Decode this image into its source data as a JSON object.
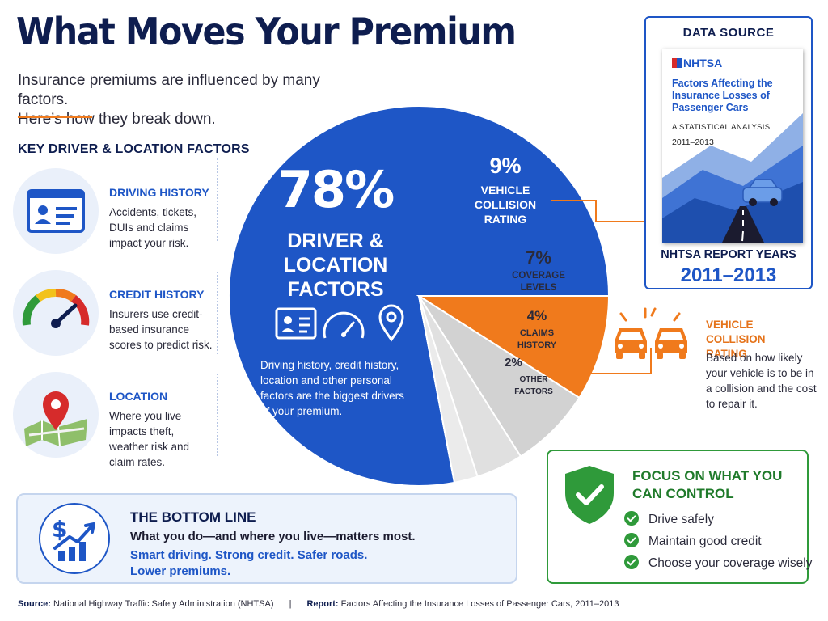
{
  "header": {
    "title": "What Moves Your Premium",
    "subtitle_line1": "Insurance premiums are influenced by many factors.",
    "subtitle_line2": "Here’s how they break down."
  },
  "key_factors": {
    "title": "KEY DRIVER & LOCATION FACTORS",
    "items": [
      {
        "name": "DRIVING HISTORY",
        "description": "Accidents, tickets, DUIs and claims impact your risk.",
        "icon": "id-card-icon"
      },
      {
        "name": "CREDIT HISTORY",
        "description": "Insurers use credit-based insurance scores to predict risk.",
        "icon": "gauge-icon"
      },
      {
        "name": "LOCATION",
        "description": "Where you live impacts theft, weather risk and claim rates.",
        "icon": "map-pin-icon"
      }
    ]
  },
  "pie": {
    "main_pct": "78%",
    "main_label_1": "DRIVER &",
    "main_label_2": "LOCATION",
    "main_label_3": "FACTORS",
    "main_desc_1": "Driving history, credit history,",
    "main_desc_2": "location and other personal",
    "main_desc_3": "factors are the biggest drivers",
    "main_desc_4": "of your premium.",
    "labels": [
      {
        "pct": "9%",
        "line1": "VEHICLE",
        "line2": "COLLISION",
        "line3": "RATING"
      },
      {
        "pct": "7%",
        "line1": "COVERAGE",
        "line2": "LEVELS"
      },
      {
        "pct": "4%",
        "line1": "CLAIMS",
        "line2": "HISTORY"
      },
      {
        "pct": "2%",
        "line1": "OTHER",
        "line2": "FACTORS"
      }
    ]
  },
  "chart_data": {
    "type": "pie",
    "title": "What Moves Your Premium",
    "categories": [
      "Driver & Location Factors",
      "Vehicle Collision Rating",
      "Coverage Levels",
      "Claims History",
      "Other Factors"
    ],
    "values": [
      78,
      9,
      7,
      4,
      2
    ],
    "unit": "%",
    "colors": [
      "#1e56c6",
      "#f07a1c",
      "#d2d2d2",
      "#e0e0e0",
      "#ebebeb"
    ]
  },
  "data_source": {
    "label": "DATA SOURCE",
    "report_brand": "NHTSA",
    "report_title": "Factors Affecting the Insurance Losses of Passenger Cars",
    "report_subtitle": "A STATISTICAL ANALYSIS",
    "report_cover_years": "2011–2013",
    "years_label": "NHTSA REPORT YEARS",
    "years": "2011–2013"
  },
  "vehicle_collision": {
    "title": "VEHICLE COLLISION RATING",
    "description": "Based on how likely your vehicle is to be in a collision and the cost to repair it.",
    "icon": "cars-collision-icon"
  },
  "focus": {
    "title": "FOCUS ON WHAT YOU CAN CONTROL",
    "icon": "shield-check-icon",
    "items": [
      "Drive safely",
      "Maintain good credit",
      "Choose your coverage wisely"
    ]
  },
  "bottom_line": {
    "title": "THE BOTTOM LINE",
    "line1": "What you do—and where you live—matters most.",
    "line2": "Smart driving. Strong credit. Safer roads.",
    "line3": "Lower premiums.",
    "icon": "dollar-growth-icon"
  },
  "footer": {
    "source_label": "Source:",
    "source_text": "National Highway Traffic Safety Administration (NHTSA)",
    "separator": "|",
    "report_label": "Report:",
    "report_text": "Factors Affecting the Insurance Losses of Passenger Cars, 2011–2013"
  },
  "colors": {
    "navy": "#0e1d4f",
    "blue": "#1e56c6",
    "orange": "#f07a1c",
    "green": "#2f9a3a"
  }
}
